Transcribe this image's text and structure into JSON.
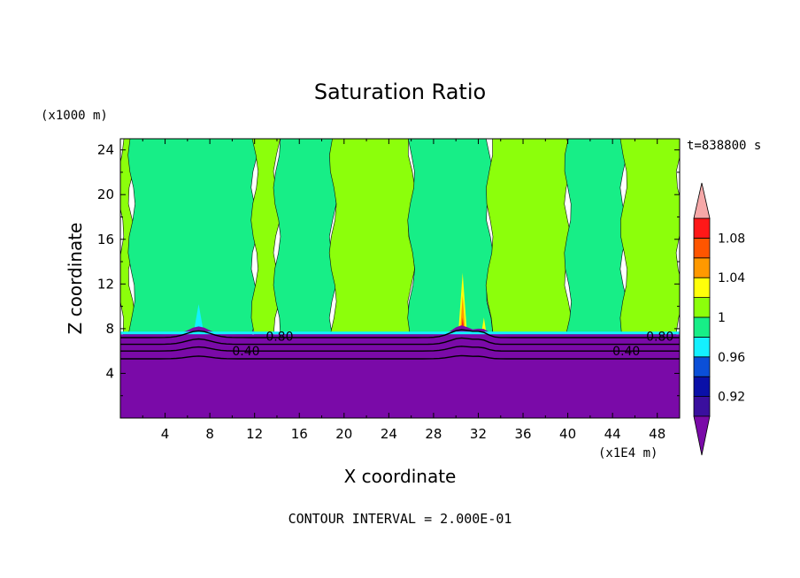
{
  "chart_data": {
    "type": "heatmap",
    "title": "Saturation Ratio",
    "xlabel": "X coordinate",
    "ylabel": "Z coordinate",
    "x_unit": "(x1E4 m)",
    "y_unit": "(x1000 m)",
    "time_label": "t=838800 s",
    "footer": "CONTOUR INTERVAL = 2.000E-01",
    "xlim": [
      0,
      50
    ],
    "ylim": [
      0,
      25
    ],
    "x_ticks": [
      4,
      8,
      12,
      16,
      20,
      24,
      28,
      32,
      36,
      40,
      44,
      48
    ],
    "y_ticks": [
      4,
      8,
      12,
      16,
      20,
      24
    ],
    "colorbar": {
      "levels": [
        {
          "min": null,
          "max": 0.9,
          "color": "#7a0aa8"
        },
        {
          "min": 0.9,
          "max": 0.92,
          "color": "#3a0f9e"
        },
        {
          "min": 0.92,
          "max": 0.94,
          "color": "#0a10a8"
        },
        {
          "min": 0.94,
          "max": 0.96,
          "color": "#0b4fd8"
        },
        {
          "min": 0.96,
          "max": 0.98,
          "color": "#14f0ff"
        },
        {
          "min": 0.98,
          "max": 1.0,
          "color": "#17ee87"
        },
        {
          "min": 1.0,
          "max": 1.02,
          "color": "#8cff0b"
        },
        {
          "min": 1.02,
          "max": 1.04,
          "color": "#ffff0a"
        },
        {
          "min": 1.04,
          "max": 1.06,
          "color": "#ff9900"
        },
        {
          "min": 1.06,
          "max": 1.08,
          "color": "#ff5500"
        },
        {
          "min": 1.08,
          "max": 1.1,
          "color": "#ff1818"
        },
        {
          "min": 1.1,
          "max": null,
          "color": "#f6a8a8"
        }
      ],
      "tick_labels": [
        "0.92",
        "0.96",
        "1",
        "1.04",
        "1.08"
      ],
      "tick_values": [
        0.92,
        0.96,
        1.0,
        1.04,
        1.08
      ]
    },
    "bands": [
      {
        "x0": 0,
        "x1": 1,
        "value": "1",
        "color": "#8cff0b"
      },
      {
        "x0": 1,
        "x1": 12,
        "value": "0.98",
        "color": "#17ee87"
      },
      {
        "x0": 12,
        "x1": 14,
        "value": "1",
        "color": "#8cff0b"
      },
      {
        "x0": 14,
        "x1": 19,
        "value": "0.98",
        "color": "#17ee87"
      },
      {
        "x0": 19,
        "x1": 26,
        "value": "1",
        "color": "#8cff0b"
      },
      {
        "x0": 26,
        "x1": 33,
        "value": "0.98",
        "color": "#17ee87"
      },
      {
        "x0": 33,
        "x1": 40,
        "value": "1",
        "color": "#8cff0b"
      },
      {
        "x0": 40,
        "x1": 45,
        "value": "0.98",
        "color": "#17ee87"
      },
      {
        "x0": 45,
        "x1": 50,
        "value": "1",
        "color": "#8cff0b"
      }
    ],
    "lower_layer": {
      "z_top": 7.5,
      "value": "<0.90",
      "color": "#7a0aa8"
    },
    "contour_labels": [
      {
        "text": "0.80",
        "x": 13,
        "z": 7.3
      },
      {
        "text": "0.40",
        "x": 10,
        "z": 6.0
      },
      {
        "text": "0.80",
        "x": 47,
        "z": 7.3
      },
      {
        "text": "0.40",
        "x": 44,
        "z": 6.0
      }
    ],
    "grid": false,
    "legend": "colorbar-right"
  }
}
